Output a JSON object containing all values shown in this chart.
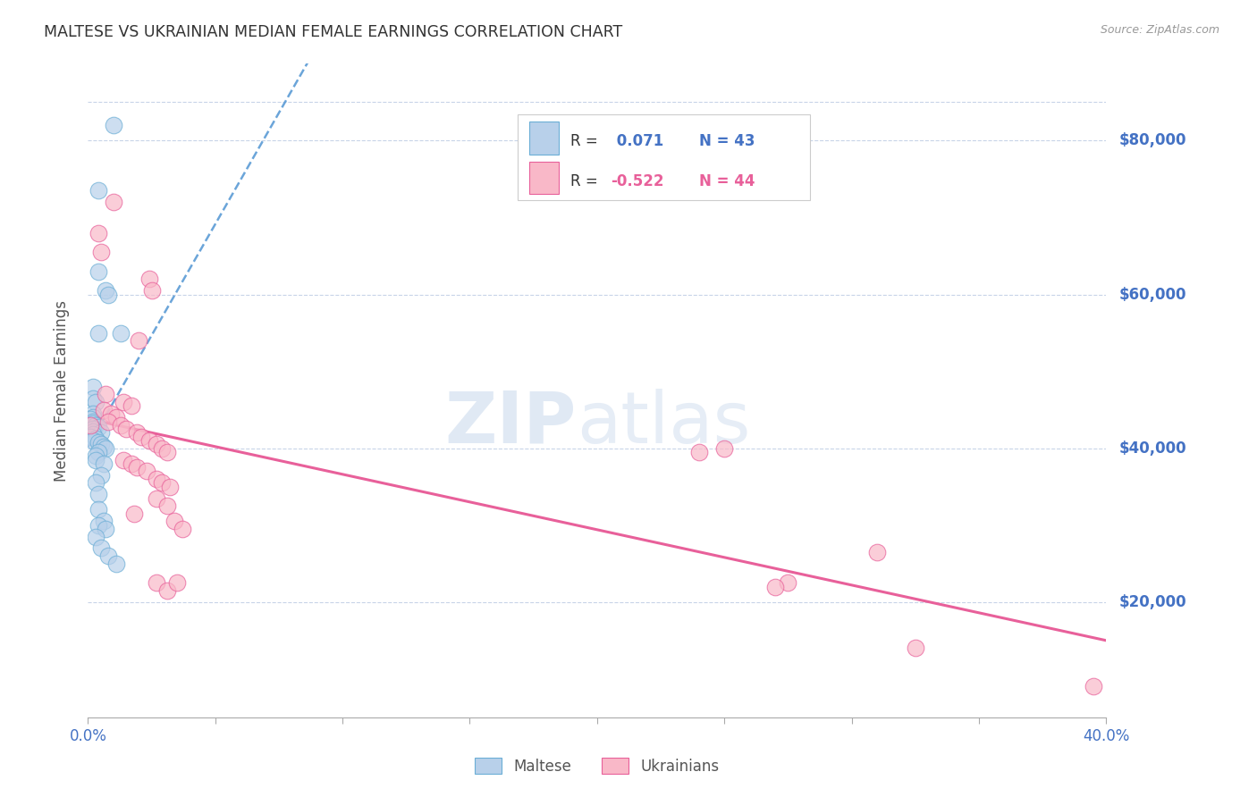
{
  "title": "MALTESE VS UKRAINIAN MEDIAN FEMALE EARNINGS CORRELATION CHART",
  "source": "Source: ZipAtlas.com",
  "ylabel": "Median Female Earnings",
  "y_tick_labels": [
    "$20,000",
    "$40,000",
    "$60,000",
    "$80,000"
  ],
  "y_tick_values": [
    20000,
    40000,
    60000,
    80000
  ],
  "watermark_zip": "ZIP",
  "watermark_atlas": "atlas",
  "legend_r1_label": "R =",
  "legend_r1_val": " 0.071",
  "legend_n1": "N = 43",
  "legend_r2_val": "-0.522",
  "legend_n2": "N = 44",
  "legend_label1": "Maltese",
  "legend_label2": "Ukrainians",
  "maltese_fill": "#b8d0ea",
  "maltese_edge": "#6baed6",
  "ukrainian_fill": "#f9b8c8",
  "ukrainian_edge": "#e8609a",
  "maltese_line_color": "#5b9bd5",
  "ukrainian_line_color": "#e8609a",
  "maltese_scatter": [
    [
      0.004,
      73500
    ],
    [
      0.01,
      82000
    ],
    [
      0.004,
      63000
    ],
    [
      0.007,
      60500
    ],
    [
      0.008,
      60000
    ],
    [
      0.004,
      55000
    ],
    [
      0.013,
      55000
    ],
    [
      0.002,
      48000
    ],
    [
      0.002,
      46500
    ],
    [
      0.003,
      46000
    ],
    [
      0.002,
      44500
    ],
    [
      0.002,
      44000
    ],
    [
      0.001,
      43800
    ],
    [
      0.002,
      43500
    ],
    [
      0.002,
      43200
    ],
    [
      0.003,
      43000
    ],
    [
      0.004,
      42800
    ],
    [
      0.002,
      42500
    ],
    [
      0.002,
      42200
    ],
    [
      0.005,
      42000
    ],
    [
      0.002,
      41800
    ],
    [
      0.001,
      41500
    ],
    [
      0.003,
      41200
    ],
    [
      0.002,
      41000
    ],
    [
      0.004,
      40800
    ],
    [
      0.005,
      40500
    ],
    [
      0.006,
      40200
    ],
    [
      0.007,
      40000
    ],
    [
      0.004,
      39500
    ],
    [
      0.003,
      39000
    ],
    [
      0.003,
      38500
    ],
    [
      0.006,
      38000
    ],
    [
      0.005,
      36500
    ],
    [
      0.003,
      35500
    ],
    [
      0.004,
      34000
    ],
    [
      0.004,
      32000
    ],
    [
      0.006,
      30500
    ],
    [
      0.004,
      30000
    ],
    [
      0.007,
      29500
    ],
    [
      0.003,
      28500
    ],
    [
      0.005,
      27000
    ],
    [
      0.008,
      26000
    ],
    [
      0.011,
      25000
    ]
  ],
  "ukrainian_scatter": [
    [
      0.004,
      68000
    ],
    [
      0.01,
      72000
    ],
    [
      0.005,
      65500
    ],
    [
      0.02,
      54000
    ],
    [
      0.024,
      62000
    ],
    [
      0.025,
      60500
    ],
    [
      0.007,
      47000
    ],
    [
      0.014,
      46000
    ],
    [
      0.017,
      45500
    ],
    [
      0.006,
      45000
    ],
    [
      0.009,
      44500
    ],
    [
      0.011,
      44000
    ],
    [
      0.008,
      43500
    ],
    [
      0.013,
      43000
    ],
    [
      0.015,
      42500
    ],
    [
      0.019,
      42000
    ],
    [
      0.021,
      41500
    ],
    [
      0.024,
      41000
    ],
    [
      0.027,
      40500
    ],
    [
      0.029,
      40000
    ],
    [
      0.031,
      39500
    ],
    [
      0.014,
      38500
    ],
    [
      0.017,
      38000
    ],
    [
      0.019,
      37500
    ],
    [
      0.023,
      37000
    ],
    [
      0.027,
      36000
    ],
    [
      0.029,
      35500
    ],
    [
      0.032,
      35000
    ],
    [
      0.027,
      33500
    ],
    [
      0.031,
      32500
    ],
    [
      0.018,
      31500
    ],
    [
      0.034,
      30500
    ],
    [
      0.037,
      29500
    ],
    [
      0.001,
      43000
    ],
    [
      0.027,
      22500
    ],
    [
      0.031,
      21500
    ],
    [
      0.035,
      22500
    ],
    [
      0.24,
      39500
    ],
    [
      0.25,
      40000
    ],
    [
      0.275,
      22500
    ],
    [
      0.31,
      26500
    ],
    [
      0.27,
      22000
    ],
    [
      0.325,
      14000
    ],
    [
      0.395,
      9000
    ]
  ],
  "xlim": [
    0.0,
    0.4
  ],
  "ylim": [
    5000,
    90000
  ],
  "x_ticks": [
    0.0,
    0.05,
    0.1,
    0.15,
    0.2,
    0.25,
    0.3,
    0.35,
    0.4
  ],
  "background_color": "#ffffff",
  "grid_color": "#c8d4e8"
}
